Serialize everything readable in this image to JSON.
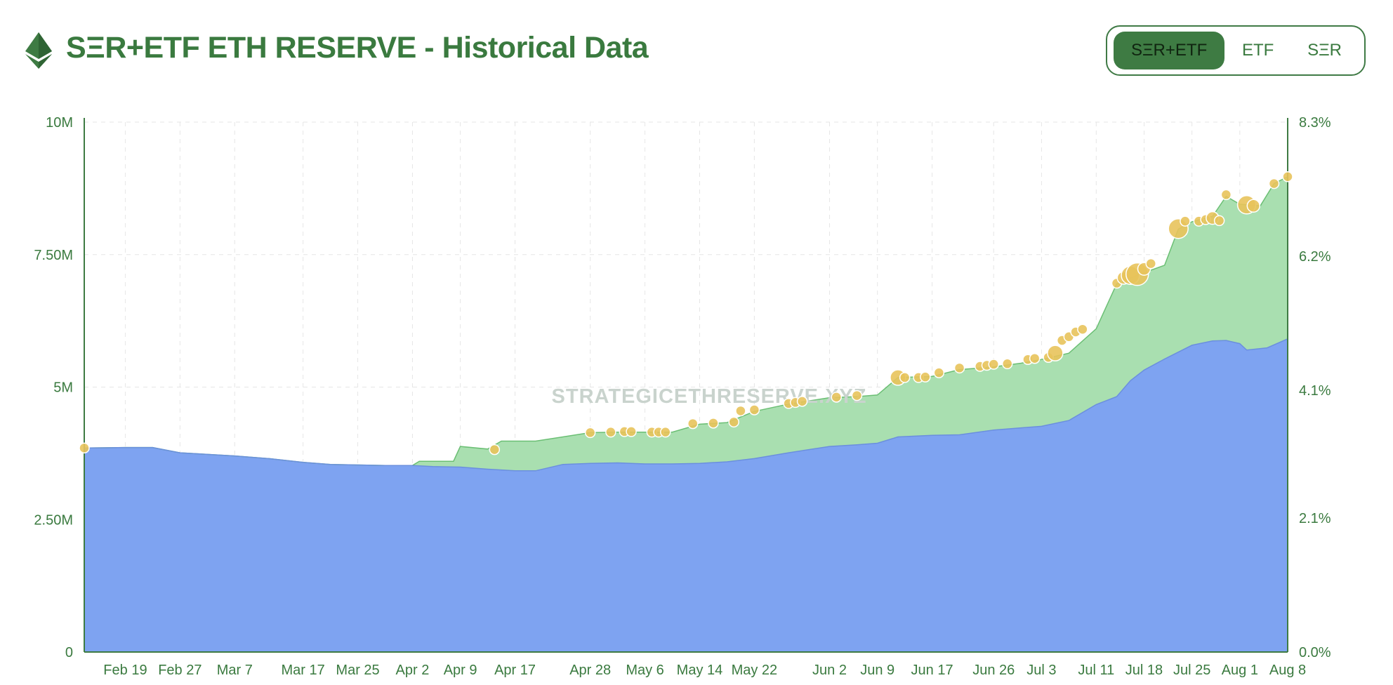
{
  "header": {
    "title": "SΞR+ETF ETH RESERVE - Historical Data",
    "logo_icon": "ethereum-icon"
  },
  "toggle": {
    "options": [
      {
        "label": "SΞR+ETF",
        "active": true
      },
      {
        "label": "ETF",
        "active": false
      },
      {
        "label": "SΞR",
        "active": false
      }
    ]
  },
  "watermark": "STRATEGICETHRESERVE.XYZ",
  "colors": {
    "etf_area": "#7ea3f1",
    "ser_area": "#a9dfb0",
    "ser_line": "#6bbf74",
    "etf_line": "#6b8fde",
    "bubble": "#e8c35b",
    "grid": "#e6e6e6",
    "text": "#3a7a3f"
  },
  "chart_data": {
    "type": "area",
    "x_domain": [
      "2025-02-13",
      "2025-08-08"
    ],
    "y_left": {
      "min": 0,
      "max": 10000000,
      "ticks": [
        {
          "value": 0,
          "label": "0"
        },
        {
          "value": 2500000,
          "label": "2.50M"
        },
        {
          "value": 5000000,
          "label": "5M"
        },
        {
          "value": 7500000,
          "label": "7.50M"
        },
        {
          "value": 10000000,
          "label": "10M"
        }
      ]
    },
    "y_right": {
      "min": 0,
      "max": 8.3,
      "unit": "%",
      "ticks": [
        {
          "value": 0,
          "label": "0.0%"
        },
        {
          "value": 2.1,
          "label": "2.1%"
        },
        {
          "value": 4.1,
          "label": "4.1%"
        },
        {
          "value": 6.2,
          "label": "6.2%"
        },
        {
          "value": 8.3,
          "label": "8.3%"
        }
      ]
    },
    "x_ticks": [
      {
        "date": "2025-02-19",
        "label": "Feb 19"
      },
      {
        "date": "2025-02-27",
        "label": "Feb 27"
      },
      {
        "date": "2025-03-07",
        "label": "Mar 7"
      },
      {
        "date": "2025-03-17",
        "label": "Mar 17"
      },
      {
        "date": "2025-03-25",
        "label": "Mar 25"
      },
      {
        "date": "2025-04-02",
        "label": "Apr 2"
      },
      {
        "date": "2025-04-09",
        "label": "Apr 9"
      },
      {
        "date": "2025-04-17",
        "label": "Apr 17"
      },
      {
        "date": "2025-04-28",
        "label": "Apr 28"
      },
      {
        "date": "2025-05-06",
        "label": "May 6"
      },
      {
        "date": "2025-05-14",
        "label": "May 14"
      },
      {
        "date": "2025-05-22",
        "label": "May 22"
      },
      {
        "date": "2025-06-02",
        "label": "Jun 2"
      },
      {
        "date": "2025-06-09",
        "label": "Jun 9"
      },
      {
        "date": "2025-06-17",
        "label": "Jun 17"
      },
      {
        "date": "2025-06-26",
        "label": "Jun 26"
      },
      {
        "date": "2025-07-03",
        "label": "Jul 3"
      },
      {
        "date": "2025-07-11",
        "label": "Jul 11"
      },
      {
        "date": "2025-07-18",
        "label": "Jul 18"
      },
      {
        "date": "2025-07-25",
        "label": "Jul 25"
      },
      {
        "date": "2025-08-01",
        "label": "Aug 1"
      },
      {
        "date": "2025-08-08",
        "label": "Aug 8"
      }
    ],
    "grid": true,
    "series": [
      {
        "key": "etf",
        "points": [
          [
            "2025-02-13",
            3850000
          ],
          [
            "2025-02-19",
            3860000
          ],
          [
            "2025-02-23",
            3860000
          ],
          [
            "2025-02-27",
            3760000
          ],
          [
            "2025-03-03",
            3730000
          ],
          [
            "2025-03-07",
            3700000
          ],
          [
            "2025-03-12",
            3650000
          ],
          [
            "2025-03-17",
            3580000
          ],
          [
            "2025-03-21",
            3540000
          ],
          [
            "2025-03-25",
            3530000
          ],
          [
            "2025-03-29",
            3520000
          ],
          [
            "2025-04-02",
            3520000
          ],
          [
            "2025-04-05",
            3500000
          ],
          [
            "2025-04-09",
            3490000
          ],
          [
            "2025-04-13",
            3450000
          ],
          [
            "2025-04-17",
            3420000
          ],
          [
            "2025-04-20",
            3420000
          ],
          [
            "2025-04-24",
            3540000
          ],
          [
            "2025-04-28",
            3560000
          ],
          [
            "2025-05-02",
            3570000
          ],
          [
            "2025-05-06",
            3550000
          ],
          [
            "2025-05-10",
            3550000
          ],
          [
            "2025-05-14",
            3560000
          ],
          [
            "2025-05-18",
            3590000
          ],
          [
            "2025-05-22",
            3650000
          ],
          [
            "2025-05-27",
            3760000
          ],
          [
            "2025-06-02",
            3880000
          ],
          [
            "2025-06-06",
            3910000
          ],
          [
            "2025-06-09",
            3940000
          ],
          [
            "2025-06-12",
            4060000
          ],
          [
            "2025-06-17",
            4090000
          ],
          [
            "2025-06-21",
            4100000
          ],
          [
            "2025-06-26",
            4190000
          ],
          [
            "2025-06-30",
            4230000
          ],
          [
            "2025-07-03",
            4260000
          ],
          [
            "2025-07-07",
            4370000
          ],
          [
            "2025-07-11",
            4670000
          ],
          [
            "2025-07-14",
            4820000
          ],
          [
            "2025-07-16",
            5120000
          ],
          [
            "2025-07-18",
            5320000
          ],
          [
            "2025-07-21",
            5530000
          ],
          [
            "2025-07-25",
            5790000
          ],
          [
            "2025-07-28",
            5870000
          ],
          [
            "2025-07-30",
            5880000
          ],
          [
            "2025-08-01",
            5820000
          ],
          [
            "2025-08-02",
            5700000
          ],
          [
            "2025-08-05",
            5740000
          ],
          [
            "2025-08-08",
            5910000
          ]
        ]
      },
      {
        "key": "total",
        "points": [
          [
            "2025-02-13",
            3850000
          ],
          [
            "2025-02-19",
            3860000
          ],
          [
            "2025-02-23",
            3860000
          ],
          [
            "2025-02-27",
            3760000
          ],
          [
            "2025-03-03",
            3730000
          ],
          [
            "2025-03-07",
            3700000
          ],
          [
            "2025-03-12",
            3650000
          ],
          [
            "2025-03-17",
            3580000
          ],
          [
            "2025-03-21",
            3540000
          ],
          [
            "2025-03-25",
            3530000
          ],
          [
            "2025-03-29",
            3520000
          ],
          [
            "2025-04-02",
            3520000
          ],
          [
            "2025-04-03",
            3600000
          ],
          [
            "2025-04-08",
            3600000
          ],
          [
            "2025-04-09",
            3880000
          ],
          [
            "2025-04-13",
            3830000
          ],
          [
            "2025-04-15",
            3980000
          ],
          [
            "2025-04-20",
            3980000
          ],
          [
            "2025-04-24",
            4060000
          ],
          [
            "2025-04-28",
            4140000
          ],
          [
            "2025-05-02",
            4150000
          ],
          [
            "2025-05-06",
            4150000
          ],
          [
            "2025-05-10",
            4150000
          ],
          [
            "2025-05-14",
            4300000
          ],
          [
            "2025-05-18",
            4330000
          ],
          [
            "2025-05-22",
            4540000
          ],
          [
            "2025-05-27",
            4680000
          ],
          [
            "2025-06-02",
            4800000
          ],
          [
            "2025-06-06",
            4820000
          ],
          [
            "2025-06-09",
            4850000
          ],
          [
            "2025-06-12",
            5180000
          ],
          [
            "2025-06-17",
            5200000
          ],
          [
            "2025-06-21",
            5330000
          ],
          [
            "2025-06-26",
            5380000
          ],
          [
            "2025-06-30",
            5450000
          ],
          [
            "2025-07-03",
            5520000
          ],
          [
            "2025-07-07",
            5640000
          ],
          [
            "2025-07-11",
            6100000
          ],
          [
            "2025-07-14",
            6950000
          ],
          [
            "2025-07-16",
            7060000
          ],
          [
            "2025-07-18",
            7160000
          ],
          [
            "2025-07-21",
            7300000
          ],
          [
            "2025-07-23",
            7980000
          ],
          [
            "2025-07-25",
            8120000
          ],
          [
            "2025-07-28",
            8220000
          ],
          [
            "2025-07-30",
            8600000
          ],
          [
            "2025-08-01",
            8450000
          ],
          [
            "2025-08-04",
            8420000
          ],
          [
            "2025-08-06",
            8840000
          ],
          [
            "2025-08-08",
            8970000
          ]
        ]
      }
    ],
    "purchases": [
      [
        "2025-02-13",
        3850000,
        7
      ],
      [
        "2025-04-14",
        3820000,
        7
      ],
      [
        "2025-04-28",
        4140000,
        7
      ],
      [
        "2025-05-01",
        4150000,
        7
      ],
      [
        "2025-05-03",
        4160000,
        7
      ],
      [
        "2025-05-04",
        4160000,
        7
      ],
      [
        "2025-05-07",
        4150000,
        7
      ],
      [
        "2025-05-08",
        4150000,
        7
      ],
      [
        "2025-05-09",
        4150000,
        7
      ],
      [
        "2025-05-13",
        4310000,
        7
      ],
      [
        "2025-05-16",
        4320000,
        7
      ],
      [
        "2025-05-19",
        4340000,
        7
      ],
      [
        "2025-05-20",
        4550000,
        7
      ],
      [
        "2025-05-22",
        4570000,
        7
      ],
      [
        "2025-05-27",
        4690000,
        7
      ],
      [
        "2025-05-28",
        4710000,
        7
      ],
      [
        "2025-05-29",
        4730000,
        7
      ],
      [
        "2025-06-03",
        4810000,
        7
      ],
      [
        "2025-06-06",
        4840000,
        7
      ],
      [
        "2025-06-12",
        5180000,
        11
      ],
      [
        "2025-06-13",
        5180000,
        7
      ],
      [
        "2025-06-15",
        5180000,
        7
      ],
      [
        "2025-06-16",
        5190000,
        7
      ],
      [
        "2025-06-18",
        5270000,
        7
      ],
      [
        "2025-06-21",
        5360000,
        7
      ],
      [
        "2025-06-24",
        5390000,
        7
      ],
      [
        "2025-06-25",
        5410000,
        7
      ],
      [
        "2025-06-26",
        5430000,
        7
      ],
      [
        "2025-06-28",
        5440000,
        7
      ],
      [
        "2025-07-01",
        5520000,
        7
      ],
      [
        "2025-07-02",
        5540000,
        7
      ],
      [
        "2025-07-04",
        5560000,
        7
      ],
      [
        "2025-07-05",
        5640000,
        11
      ],
      [
        "2025-07-06",
        5880000,
        7
      ],
      [
        "2025-07-07",
        5950000,
        7
      ],
      [
        "2025-07-08",
        6040000,
        7
      ],
      [
        "2025-07-09",
        6090000,
        7
      ],
      [
        "2025-07-14",
        6960000,
        7
      ],
      [
        "2025-07-15",
        7060000,
        9
      ],
      [
        "2025-07-16",
        7110000,
        13
      ],
      [
        "2025-07-17",
        7130000,
        16
      ],
      [
        "2025-07-18",
        7230000,
        9
      ],
      [
        "2025-07-19",
        7330000,
        7
      ],
      [
        "2025-07-23",
        7990000,
        14
      ],
      [
        "2025-07-24",
        8130000,
        7
      ],
      [
        "2025-07-26",
        8130000,
        7
      ],
      [
        "2025-07-27",
        8160000,
        7
      ],
      [
        "2025-07-28",
        8190000,
        9
      ],
      [
        "2025-07-29",
        8140000,
        7
      ],
      [
        "2025-07-30",
        8630000,
        7
      ],
      [
        "2025-08-02",
        8440000,
        13
      ],
      [
        "2025-08-03",
        8420000,
        9
      ],
      [
        "2025-08-06",
        8840000,
        7
      ],
      [
        "2025-08-08",
        8970000,
        7
      ]
    ]
  }
}
